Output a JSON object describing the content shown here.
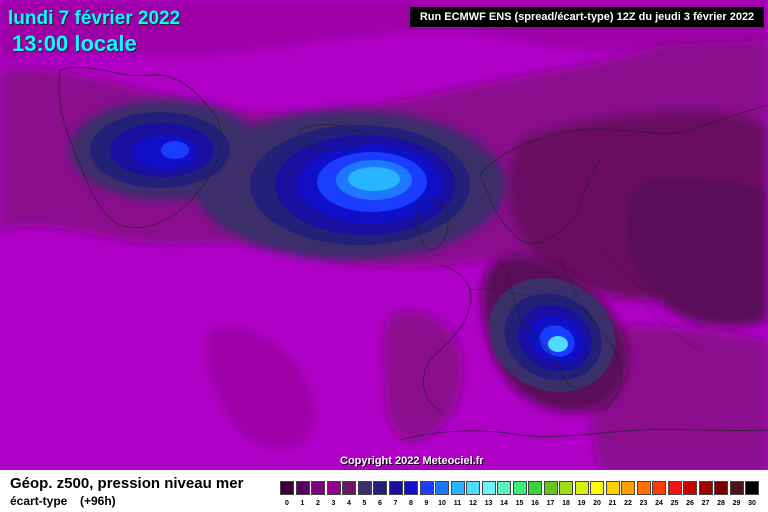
{
  "header": {
    "date": "lundi 7 février 2022",
    "time": "13:00 locale",
    "run": "Run ECMWF ENS (spread/écart-type) 12Z du jeudi 3 février 2022"
  },
  "map": {
    "copyright": "Copyright 2022 Meteociel.fr",
    "background_color": "#b000c8",
    "palette_note": "purple → navy → blue → cyan shading"
  },
  "footer": {
    "title": "Géop. z500, pression niveau mer",
    "subtitle": "écart-type",
    "lead": "(+96h)"
  },
  "legend": {
    "ticks": [
      "0",
      "1",
      "2",
      "3",
      "4",
      "5",
      "6",
      "7",
      "8",
      "9",
      "10",
      "11",
      "12",
      "13",
      "14",
      "15",
      "16",
      "17",
      "18",
      "19",
      "20",
      "21",
      "22",
      "23",
      "24",
      "25",
      "26",
      "27",
      "28",
      "29",
      "30"
    ],
    "colors": [
      "#3a0038",
      "#5a0060",
      "#7c007f",
      "#94008f",
      "#6a1862",
      "#3a2f6a",
      "#23207a",
      "#1a0fa0",
      "#1010c8",
      "#1a3cff",
      "#1e78ff",
      "#28b4ff",
      "#50dcff",
      "#6ef0ff",
      "#5af0c0",
      "#3cf07a",
      "#3cd23c",
      "#64c81e",
      "#a0dc14",
      "#d2f014",
      "#ffff00",
      "#ffd200",
      "#ffa000",
      "#ff6e00",
      "#ff3c00",
      "#f01414",
      "#c80000",
      "#a00000",
      "#780000",
      "#501414",
      "#000000"
    ]
  }
}
